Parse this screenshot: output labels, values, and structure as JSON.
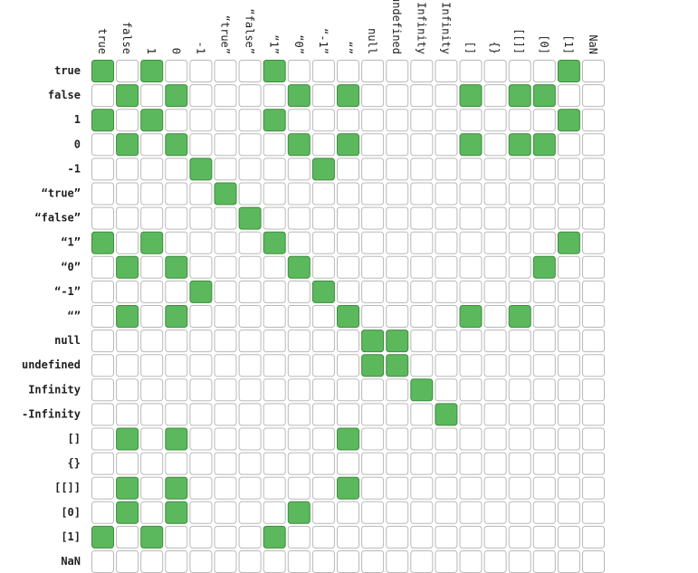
{
  "chart_data": {
    "type": "heatmap",
    "title": "",
    "xlabel": "",
    "ylabel": "",
    "legend": "none",
    "grid": true,
    "colors": {
      "true_fill": "#5cb85c",
      "true_stroke": "#3c8c3c",
      "false_fill": "#ffffff",
      "false_stroke": "#b8b8b8"
    },
    "labels": [
      "true",
      "false",
      "1",
      "0",
      "-1",
      "“true”",
      "“false”",
      "“1”",
      "“0”",
      "“-1”",
      "“”",
      "null",
      "undefined",
      "Infinity",
      "-Infinity",
      "[]",
      "{}",
      "[[]]",
      "[0]",
      "[1]",
      "NaN"
    ],
    "values": [
      [
        1,
        0,
        1,
        0,
        0,
        0,
        0,
        1,
        0,
        0,
        0,
        0,
        0,
        0,
        0,
        0,
        0,
        0,
        0,
        1,
        0
      ],
      [
        0,
        1,
        0,
        1,
        0,
        0,
        0,
        0,
        1,
        0,
        1,
        0,
        0,
        0,
        0,
        1,
        0,
        1,
        1,
        0,
        0
      ],
      [
        1,
        0,
        1,
        0,
        0,
        0,
        0,
        1,
        0,
        0,
        0,
        0,
        0,
        0,
        0,
        0,
        0,
        0,
        0,
        1,
        0
      ],
      [
        0,
        1,
        0,
        1,
        0,
        0,
        0,
        0,
        1,
        0,
        1,
        0,
        0,
        0,
        0,
        1,
        0,
        1,
        1,
        0,
        0
      ],
      [
        0,
        0,
        0,
        0,
        1,
        0,
        0,
        0,
        0,
        1,
        0,
        0,
        0,
        0,
        0,
        0,
        0,
        0,
        0,
        0,
        0
      ],
      [
        0,
        0,
        0,
        0,
        0,
        1,
        0,
        0,
        0,
        0,
        0,
        0,
        0,
        0,
        0,
        0,
        0,
        0,
        0,
        0,
        0
      ],
      [
        0,
        0,
        0,
        0,
        0,
        0,
        1,
        0,
        0,
        0,
        0,
        0,
        0,
        0,
        0,
        0,
        0,
        0,
        0,
        0,
        0
      ],
      [
        1,
        0,
        1,
        0,
        0,
        0,
        0,
        1,
        0,
        0,
        0,
        0,
        0,
        0,
        0,
        0,
        0,
        0,
        0,
        1,
        0
      ],
      [
        0,
        1,
        0,
        1,
        0,
        0,
        0,
        0,
        1,
        0,
        0,
        0,
        0,
        0,
        0,
        0,
        0,
        0,
        1,
        0,
        0
      ],
      [
        0,
        0,
        0,
        0,
        1,
        0,
        0,
        0,
        0,
        1,
        0,
        0,
        0,
        0,
        0,
        0,
        0,
        0,
        0,
        0,
        0
      ],
      [
        0,
        1,
        0,
        1,
        0,
        0,
        0,
        0,
        0,
        0,
        1,
        0,
        0,
        0,
        0,
        1,
        0,
        1,
        0,
        0,
        0
      ],
      [
        0,
        0,
        0,
        0,
        0,
        0,
        0,
        0,
        0,
        0,
        0,
        1,
        1,
        0,
        0,
        0,
        0,
        0,
        0,
        0,
        0
      ],
      [
        0,
        0,
        0,
        0,
        0,
        0,
        0,
        0,
        0,
        0,
        0,
        1,
        1,
        0,
        0,
        0,
        0,
        0,
        0,
        0,
        0
      ],
      [
        0,
        0,
        0,
        0,
        0,
        0,
        0,
        0,
        0,
        0,
        0,
        0,
        0,
        1,
        0,
        0,
        0,
        0,
        0,
        0,
        0
      ],
      [
        0,
        0,
        0,
        0,
        0,
        0,
        0,
        0,
        0,
        0,
        0,
        0,
        0,
        0,
        1,
        0,
        0,
        0,
        0,
        0,
        0
      ],
      [
        0,
        1,
        0,
        1,
        0,
        0,
        0,
        0,
        0,
        0,
        1,
        0,
        0,
        0,
        0,
        0,
        0,
        0,
        0,
        0,
        0
      ],
      [
        0,
        0,
        0,
        0,
        0,
        0,
        0,
        0,
        0,
        0,
        0,
        0,
        0,
        0,
        0,
        0,
        0,
        0,
        0,
        0,
        0
      ],
      [
        0,
        1,
        0,
        1,
        0,
        0,
        0,
        0,
        0,
        0,
        1,
        0,
        0,
        0,
        0,
        0,
        0,
        0,
        0,
        0,
        0
      ],
      [
        0,
        1,
        0,
        1,
        0,
        0,
        0,
        0,
        1,
        0,
        0,
        0,
        0,
        0,
        0,
        0,
        0,
        0,
        0,
        0,
        0
      ],
      [
        1,
        0,
        1,
        0,
        0,
        0,
        0,
        1,
        0,
        0,
        0,
        0,
        0,
        0,
        0,
        0,
        0,
        0,
        0,
        0,
        0
      ],
      [
        0,
        0,
        0,
        0,
        0,
        0,
        0,
        0,
        0,
        0,
        0,
        0,
        0,
        0,
        0,
        0,
        0,
        0,
        0,
        0,
        0
      ]
    ]
  }
}
